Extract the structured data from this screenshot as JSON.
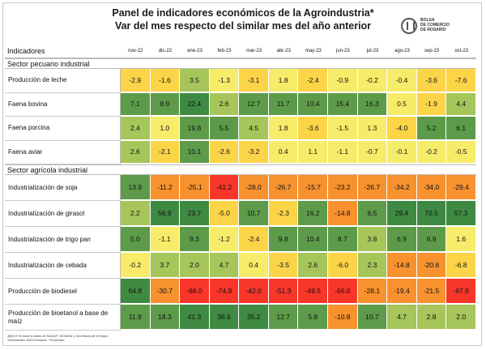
{
  "title": "Panel de indicadores económicos de la Agroindustria*",
  "subtitle": "Var del mes respecto del similar mes del año anterior",
  "logo": {
    "lines": [
      "BOLSA",
      "DE COMERCIO",
      "DE ROSARIO"
    ]
  },
  "header_label": "Indicadores",
  "footer_lines": [
    "@BCR en base a datos de MAGyP, SENASA y Secretaría de Energía.",
    "*Actividades seleccionadas. **Estimado"
  ],
  "chart_data": {
    "type": "heatmap",
    "title": "Panel de indicadores económicos de la Agroindustria*",
    "subtitle": "Var del mes respecto del similar mes del año anterior",
    "columns": [
      "nov-22",
      "dic-22",
      "ene-23",
      "feb-23",
      "mar-23",
      "abr-23",
      "may-23",
      "jun-23",
      "jul-23",
      "ago-23",
      "sep-23",
      "oct-23"
    ],
    "sections": [
      {
        "name": "Sector pecuario industrial",
        "rows": [
          {
            "label": "Producción de leche",
            "values": [
              -2.9,
              -1.6,
              3.5,
              -1.3,
              -3.1,
              1.8,
              -2.4,
              -0.9,
              -0.2,
              -0.4,
              -3.6,
              -7.6
            ]
          },
          {
            "label": "Faena bovina",
            "values": [
              7.1,
              8.9,
              22.4,
              2.6,
              12.7,
              11.7,
              10.4,
              15.4,
              16.3,
              0.5,
              -1.9,
              4.4
            ]
          },
          {
            "label": "Faena porcina",
            "values": [
              2.4,
              1.0,
              19.8,
              5.5,
              4.5,
              1.8,
              -3.6,
              -1.5,
              1.3,
              -4.0,
              5.2,
              6.1
            ]
          },
          {
            "label": "Faena aviar",
            "values": [
              2.6,
              -2.1,
              10.1,
              -2.6,
              -3.2,
              0.4,
              1.1,
              -1.1,
              -0.7,
              -0.1,
              -0.2,
              -0.5
            ]
          }
        ]
      },
      {
        "name": "Sector agrícola industrial",
        "rows": [
          {
            "label": "Industrialización de soja",
            "values": [
              13.9,
              -11.2,
              -25.1,
              -41.2,
              -28.0,
              -26.7,
              -15.7,
              -23.2,
              -26.7,
              -34.2,
              -34.0,
              -29.4
            ]
          },
          {
            "label": "Industrialización de girasol",
            "values": [
              2.2,
              56.9,
              23.7,
              -5.0,
              10.7,
              -2.3,
              16.2,
              -14.8,
              6.5,
              29.4,
              70.5,
              57.3
            ]
          },
          {
            "label": "Industrialización de trigo pan",
            "values": [
              5.0,
              -1.1,
              9.3,
              -1.2,
              -2.4,
              9.8,
              10.4,
              8.7,
              3.8,
              6.9,
              6.9,
              1.6
            ]
          },
          {
            "label": "Industrialización de cebada",
            "values": [
              -0.2,
              3.7,
              2.0,
              4.7,
              0.4,
              -3.5,
              2.6,
              -6.0,
              2.3,
              -14.8,
              -20.6,
              -6.8
            ]
          },
          {
            "label": "Producción de biodiesel",
            "values": [
              64.8,
              -30.7,
              -68.0,
              -74.9,
              -42.0,
              -51.3,
              -49.5,
              -66.0,
              -28.1,
              -19.4,
              -21.5,
              -67.6
            ]
          },
          {
            "label": "Producción de bioetanol a base de maíz",
            "values": [
              11.9,
              18.3,
              41.3,
              36.6,
              35.2,
              12.7,
              5.8,
              -10.8,
              10.7,
              4.7,
              2.8,
              2.0
            ]
          }
        ]
      }
    ],
    "colors": {
      "strong_negative": "#f8362a",
      "negative": "#f7922e",
      "slight_negative": "#fbd448",
      "neutral": "#f6ec6a",
      "slight_positive": "#a6c55a",
      "positive": "#5d9b4a",
      "strong_positive": "#3f8a42"
    }
  }
}
